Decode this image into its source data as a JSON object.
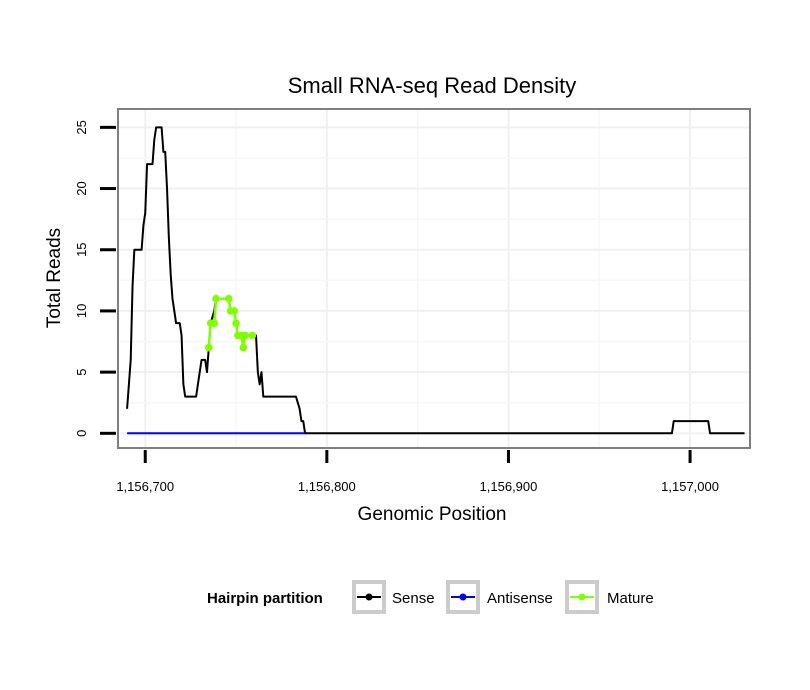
{
  "chart_data": {
    "type": "line",
    "title": "Small RNA-seq Read Density",
    "xlabel": "Genomic Position",
    "ylabel": "Total Reads",
    "xlim": [
      1156685,
      1157033
    ],
    "ylim": [
      -1.2,
      26.5
    ],
    "x_ticks": [
      1156700,
      1156800,
      1156900,
      1157000
    ],
    "x_tick_labels": [
      "1,156,700",
      "1,156,800",
      "1,156,900",
      "1,157,000"
    ],
    "y_ticks": [
      0,
      5,
      10,
      15,
      20,
      25
    ],
    "y_tick_labels": [
      "0",
      "5",
      "10",
      "15",
      "20",
      "25"
    ],
    "grid": true,
    "legend": {
      "title": "Hairpin partition",
      "position": "bottom",
      "entries": [
        "Sense",
        "Antisense",
        "Mature"
      ]
    },
    "series": [
      {
        "name": "Sense",
        "color": "#000000",
        "points": [
          [
            1156690,
            2
          ],
          [
            1156692,
            6
          ],
          [
            1156693,
            12
          ],
          [
            1156694,
            15
          ],
          [
            1156698,
            15
          ],
          [
            1156699,
            17
          ],
          [
            1156700,
            18
          ],
          [
            1156701,
            22
          ],
          [
            1156704,
            22
          ],
          [
            1156705,
            24
          ],
          [
            1156706,
            25
          ],
          [
            1156709,
            25
          ],
          [
            1156710,
            23
          ],
          [
            1156711,
            23
          ],
          [
            1156712,
            20
          ],
          [
            1156713,
            16
          ],
          [
            1156714,
            13
          ],
          [
            1156715,
            11
          ],
          [
            1156716,
            10
          ],
          [
            1156717,
            9
          ],
          [
            1156719,
            9
          ],
          [
            1156720,
            8
          ],
          [
            1156721,
            4
          ],
          [
            1156722,
            3
          ],
          [
            1156728,
            3
          ],
          [
            1156729,
            4
          ],
          [
            1156730,
            5
          ],
          [
            1156731,
            6
          ],
          [
            1156733,
            6
          ],
          [
            1156734,
            5
          ],
          [
            1156735,
            7
          ],
          [
            1156736,
            9
          ],
          [
            1156738,
            10
          ],
          [
            1156739,
            11
          ],
          [
            1156746,
            11
          ],
          [
            1156747,
            10
          ],
          [
            1156749,
            10
          ],
          [
            1156750,
            9
          ],
          [
            1156751,
            8
          ],
          [
            1156759,
            8
          ],
          [
            1156761,
            8
          ],
          [
            1156762,
            5
          ],
          [
            1156763,
            4
          ],
          [
            1156764,
            5
          ],
          [
            1156765,
            3
          ],
          [
            1156783,
            3
          ],
          [
            1156785,
            2
          ],
          [
            1156786,
            1
          ],
          [
            1156787,
            1
          ],
          [
            1156788,
            0
          ],
          [
            1156990,
            0
          ],
          [
            1156991,
            1
          ],
          [
            1157010,
            1
          ],
          [
            1157011,
            0
          ],
          [
            1157030,
            0
          ]
        ]
      },
      {
        "name": "Antisense",
        "color": "#0000FF",
        "points": [
          [
            1156690,
            0
          ],
          [
            1156788,
            0
          ]
        ]
      },
      {
        "name": "Mature",
        "color": "#7FFF00",
        "points": [
          [
            1156735,
            7
          ],
          [
            1156736,
            9
          ],
          [
            1156738,
            9
          ],
          [
            1156739,
            11
          ],
          [
            1156746,
            11
          ],
          [
            1156747,
            10
          ],
          [
            1156749,
            10
          ],
          [
            1156750,
            9
          ],
          [
            1156751,
            8
          ],
          [
            1156753,
            8
          ],
          [
            1156754,
            7
          ],
          [
            1156755,
            8
          ],
          [
            1156759,
            8
          ]
        ]
      }
    ]
  }
}
